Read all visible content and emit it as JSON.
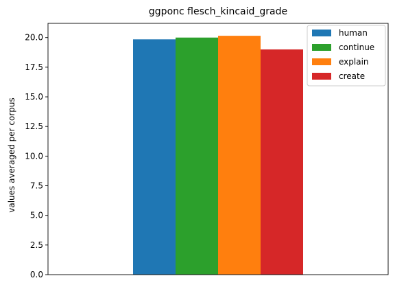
{
  "chart_data": {
    "type": "bar",
    "title": "ggponc flesch_kincaid_grade",
    "xlabel": "",
    "ylabel": "values averaged per corpus",
    "ylim": [
      0,
      21.2
    ],
    "yticks": [
      "0.0",
      "2.5",
      "5.0",
      "7.5",
      "10.0",
      "12.5",
      "15.0",
      "17.5",
      "20.0"
    ],
    "ytick_values": [
      0,
      2.5,
      5,
      7.5,
      10,
      12.5,
      15,
      17.5,
      20
    ],
    "grid": false,
    "legend_position": "top-right",
    "series": [
      {
        "name": "human",
        "value": 19.85,
        "color": "#1f77b4"
      },
      {
        "name": "continue",
        "value": 20.0,
        "color": "#2ca02c"
      },
      {
        "name": "explain",
        "value": 20.15,
        "color": "#ff7f0e"
      },
      {
        "name": "create",
        "value": 19.0,
        "color": "#d62728"
      }
    ]
  }
}
